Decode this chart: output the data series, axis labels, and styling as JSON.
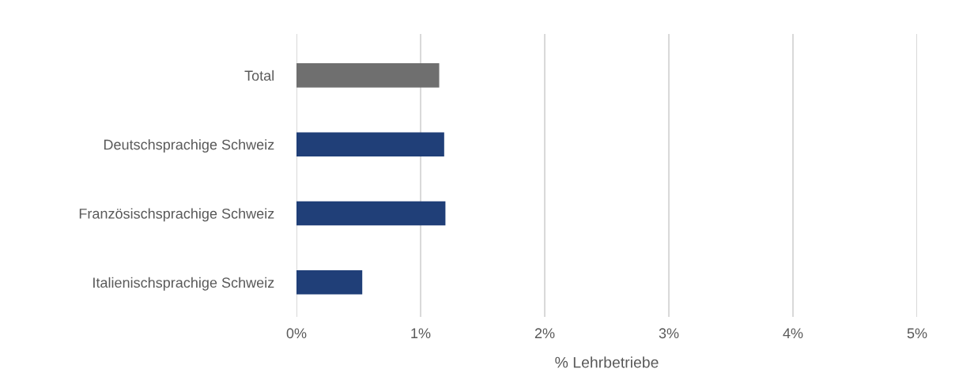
{
  "chart_data": {
    "type": "bar",
    "orientation": "horizontal",
    "xlabel": "% Lehrbetriebe",
    "categories": [
      "Total",
      "Deutschsprachige Schweiz",
      "Französischsprachige Schweiz",
      "Italienischsprachige Schweiz"
    ],
    "values": [
      1.15,
      1.19,
      1.2,
      0.53
    ],
    "colors": [
      "#6f6f6f",
      "#203f78",
      "#203f78",
      "#203f78"
    ],
    "xlim": [
      0,
      5
    ],
    "xticks": [
      {
        "value": 0,
        "label": "0%"
      },
      {
        "value": 1,
        "label": "1%"
      },
      {
        "value": 2,
        "label": "2%"
      },
      {
        "value": 3,
        "label": "3%"
      },
      {
        "value": 4,
        "label": "4%"
      },
      {
        "value": 5,
        "label": "5%"
      }
    ],
    "grid": "x",
    "legend": false
  }
}
